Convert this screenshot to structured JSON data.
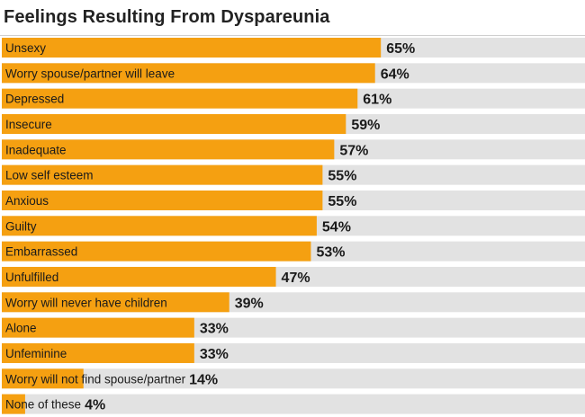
{
  "colors": {
    "bar": "#f5a011",
    "track": "#e2e2e2"
  },
  "chart_data": {
    "type": "bar",
    "orientation": "horizontal",
    "title": "Feelings Resulting From Dyspareunia",
    "categories": [
      "Unsexy",
      "Worry spouse/partner will leave",
      "Depressed",
      "Insecure",
      "Inadequate",
      "Low self esteem",
      "Anxious",
      "Guilty",
      "Embarrassed",
      "Unfulfilled",
      "Worry will never have children",
      "Alone",
      "Unfeminine",
      "Worry will not find spouse/partner",
      "None of these"
    ],
    "values": [
      65,
      64,
      61,
      59,
      57,
      55,
      55,
      54,
      53,
      47,
      39,
      33,
      33,
      14,
      4
    ],
    "value_labels": [
      "65%",
      "64%",
      "61%",
      "59%",
      "57%",
      "55%",
      "55%",
      "54%",
      "53%",
      "47%",
      "39%",
      "33%",
      "33%",
      "14%",
      "4%"
    ],
    "xlim": [
      0,
      100
    ],
    "grid": false,
    "legend": "none"
  }
}
